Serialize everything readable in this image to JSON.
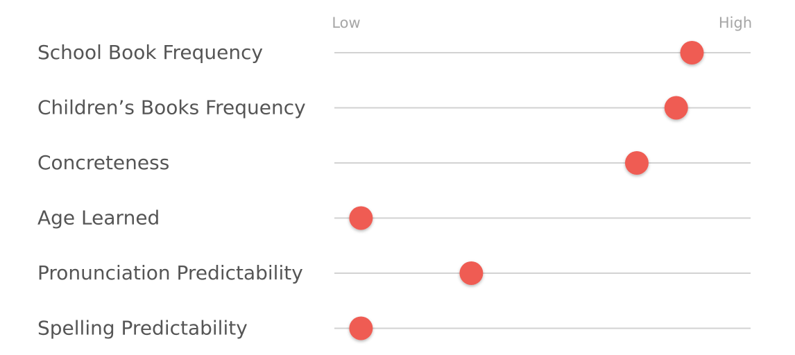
{
  "chart_data": {
    "type": "scatter",
    "scale_labels": {
      "low": "Low",
      "high": "High"
    },
    "xlim": [
      0,
      1
    ],
    "grid": false,
    "marker_color": "#ef5b52",
    "rows": [
      {
        "label": "School Book Frequency",
        "value": 0.86
      },
      {
        "label": "Children’s Books Frequency",
        "value": 0.82
      },
      {
        "label": "Concreteness",
        "value": 0.72
      },
      {
        "label": "Age Learned",
        "value": 0.02
      },
      {
        "label": "Pronunciation Predictability",
        "value": 0.3
      },
      {
        "label": "Spelling Predictability",
        "value": 0.02
      }
    ]
  }
}
